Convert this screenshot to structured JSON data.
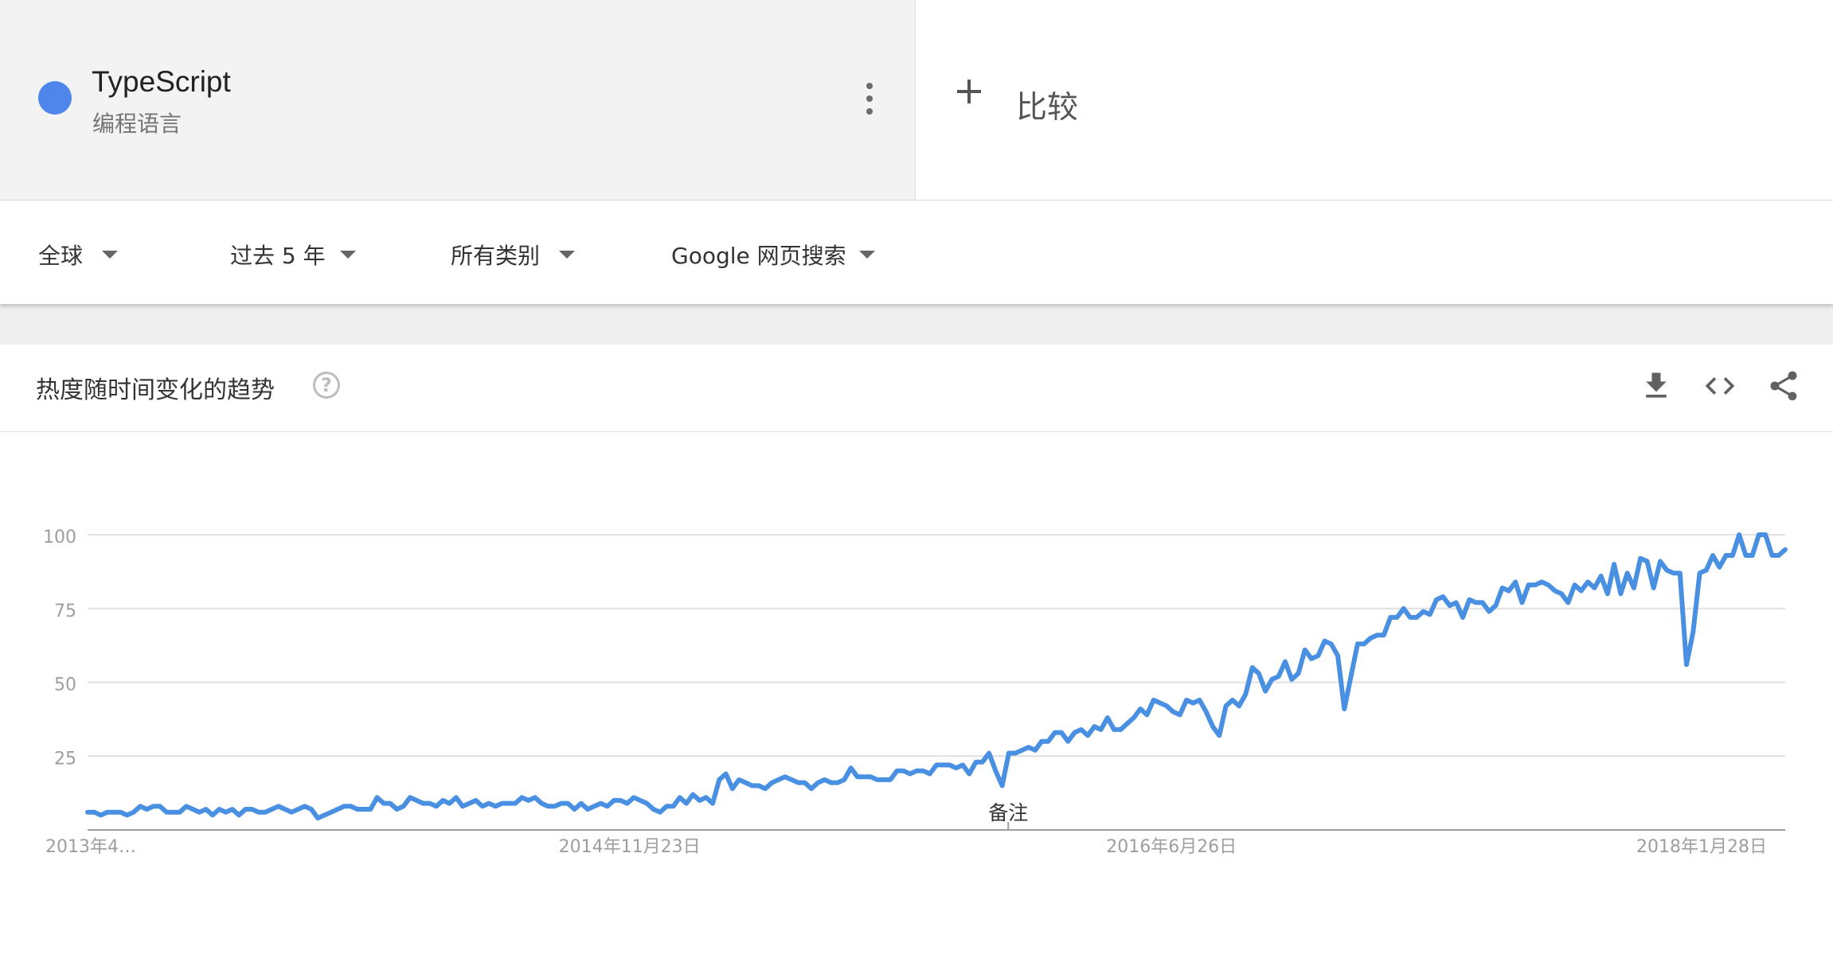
{
  "term": {
    "name": "TypeScript",
    "category": "编程语言",
    "color": "#4f86ec"
  },
  "compare": {
    "label": "比较"
  },
  "filters": [
    {
      "label": "全球"
    },
    {
      "label": "过去 5 年"
    },
    {
      "label": "所有类别"
    },
    {
      "label": "Google 网页搜索"
    }
  ],
  "widget": {
    "title": "热度随时间变化的趋势",
    "help_icon": "help-icon",
    "actions": [
      "download-icon",
      "embed-icon",
      "share-icon"
    ]
  },
  "chart_data": {
    "type": "line",
    "color": "#4a90e2",
    "ylim": [
      0,
      100
    ],
    "yticks": [
      25,
      50,
      75,
      100
    ],
    "grid": true,
    "x_start": "2013-04-21",
    "x_end": "2018-04-15",
    "xtick_labels": [
      {
        "date": "2013-04-21",
        "label": "2013年4…"
      },
      {
        "date": "2014-11-23",
        "label": "2014年11月23日"
      },
      {
        "date": "2016-06-26",
        "label": "2016年6月26日"
      },
      {
        "date": "2018-01-28",
        "label": "2018年1月28日"
      }
    ],
    "annotation": {
      "date": "2016-01-03",
      "label": "备注"
    },
    "series": [
      {
        "values": [
          6,
          6,
          5,
          6,
          6,
          6,
          5,
          6,
          8,
          7,
          8,
          8,
          6,
          6,
          6,
          8,
          7,
          6,
          7,
          5,
          7,
          6,
          7,
          5,
          7,
          7,
          6,
          6,
          7,
          8,
          7,
          6,
          7,
          8,
          7,
          4,
          5,
          6,
          7,
          8,
          8,
          7,
          7,
          7,
          11,
          9,
          9,
          7,
          8,
          11,
          10,
          9,
          9,
          8,
          10,
          9,
          11,
          8,
          9,
          10,
          8,
          9,
          8,
          9,
          9,
          9,
          11,
          10,
          11,
          9,
          8,
          8,
          9,
          9,
          7,
          9,
          7,
          8,
          9,
          8,
          10,
          10,
          9,
          11,
          10,
          9,
          7,
          6,
          8,
          8,
          11,
          9,
          12,
          10,
          11,
          9,
          17,
          19,
          14,
          17,
          16,
          15,
          15,
          14,
          16,
          17,
          18,
          17,
          16,
          16,
          14,
          16,
          17,
          16,
          16,
          17,
          21,
          18,
          18,
          18,
          17,
          17,
          17,
          20,
          20,
          19,
          20,
          20,
          19,
          22,
          22,
          22,
          21,
          22,
          19,
          23,
          23,
          26,
          20,
          15,
          26,
          26,
          27,
          28,
          27,
          30,
          30,
          33,
          33,
          30,
          33,
          34,
          32,
          35,
          34,
          38,
          34,
          34,
          36,
          38,
          41,
          39,
          44,
          43,
          42,
          40,
          39,
          44,
          43,
          44,
          40,
          35,
          32,
          42,
          44,
          42,
          46,
          55,
          53,
          47,
          51,
          52,
          57,
          51,
          53,
          61,
          58,
          59,
          64,
          63,
          59,
          41,
          52,
          63,
          63,
          65,
          66,
          66,
          72,
          72,
          75,
          72,
          72,
          74,
          73,
          78,
          79,
          76,
          77,
          72,
          78,
          77,
          77,
          74,
          76,
          82,
          81,
          84,
          77,
          83,
          83,
          84,
          83,
          81,
          80,
          77,
          83,
          81,
          84,
          82,
          86,
          80,
          90,
          80,
          87,
          82,
          92,
          91,
          82,
          91,
          88,
          87,
          87,
          56,
          67,
          87,
          88,
          93,
          89,
          93,
          93,
          100,
          93,
          93,
          100,
          100,
          93,
          93,
          95
        ]
      }
    ]
  }
}
